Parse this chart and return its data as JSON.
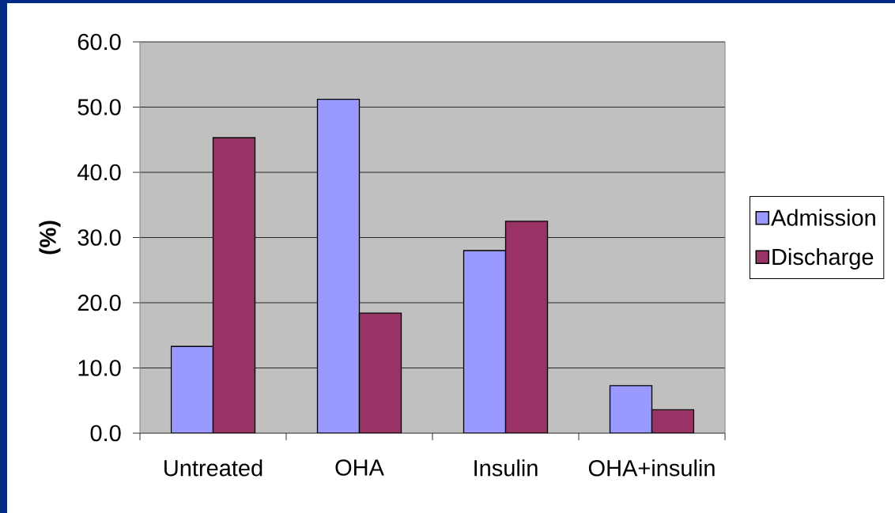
{
  "chart_data": {
    "type": "bar",
    "categories": [
      "Untreated",
      "OHA",
      "Insulin",
      "OHA+insulin"
    ],
    "series": [
      {
        "name": "Admission",
        "color": "#9999ff",
        "values": [
          13.3,
          51.2,
          28.0,
          7.3
        ]
      },
      {
        "name": "Discharge",
        "color": "#993366",
        "values": [
          45.3,
          18.4,
          32.5,
          3.6
        ]
      }
    ],
    "ylabel": "(%)",
    "ylim": [
      0,
      60
    ],
    "yticks": [
      {
        "value": 0,
        "label": "0.0"
      },
      {
        "value": 10,
        "label": "10.0"
      },
      {
        "value": 20,
        "label": "20.0"
      },
      {
        "value": 30,
        "label": "30.0"
      },
      {
        "value": 40,
        "label": "40.0"
      },
      {
        "value": 50,
        "label": "50.0"
      },
      {
        "value": 60,
        "label": "60.0"
      }
    ],
    "grid": "y",
    "legend": "right"
  }
}
